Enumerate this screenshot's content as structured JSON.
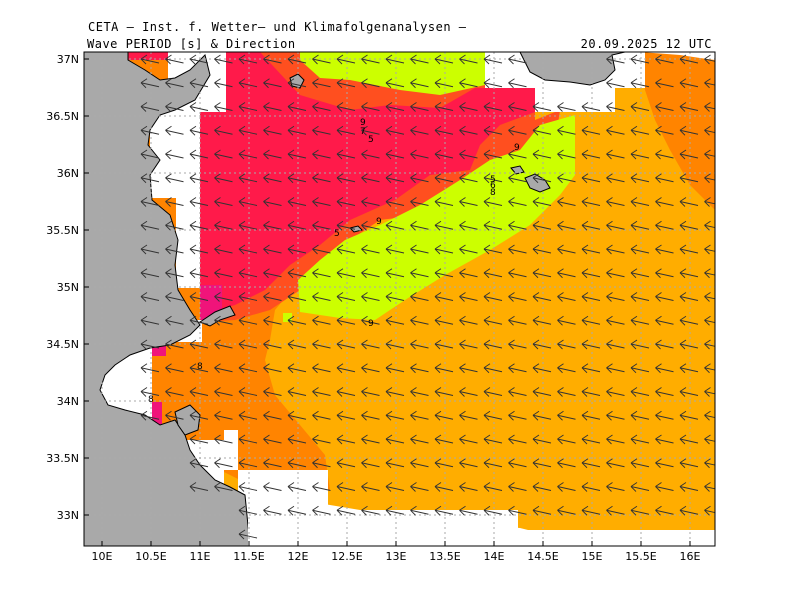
{
  "header": {
    "title": "CETA – Inst. f. Wetter– und Klimafolgenanalysen –",
    "subtitle": "Wave PERIOD [s] & Direction",
    "timestamp": "20.09.2025 12 UTC"
  },
  "axes": {
    "x_ticks": [
      "10E",
      "10.5E",
      "11E",
      "11.5E",
      "12E",
      "12.5E",
      "13E",
      "13.5E",
      "14E",
      "14.5E",
      "15E",
      "15.5E",
      "16E"
    ],
    "y_ticks": [
      "37N",
      "36.5N",
      "36N",
      "35.5N",
      "35N",
      "34.5N",
      "34N",
      "33.5N",
      "33N"
    ]
  },
  "contour_labels": [
    "9",
    "7",
    "5",
    "9",
    "5",
    "9",
    "9",
    "5",
    "6",
    "8",
    "8",
    "8"
  ],
  "colors": {
    "land": "#a9a9a9",
    "gap": "#ffffff",
    "orange": "#ffad00",
    "dark_orange": "#ff8400",
    "red_orange": "#ff4f1f",
    "crimson": "#ff1a4a",
    "magenta": "#f0147a",
    "lime": "#ccff00",
    "arrow": "#333333",
    "grid": "#aaaaaa"
  },
  "wave_direction": "arrows point west (toward the left)"
}
